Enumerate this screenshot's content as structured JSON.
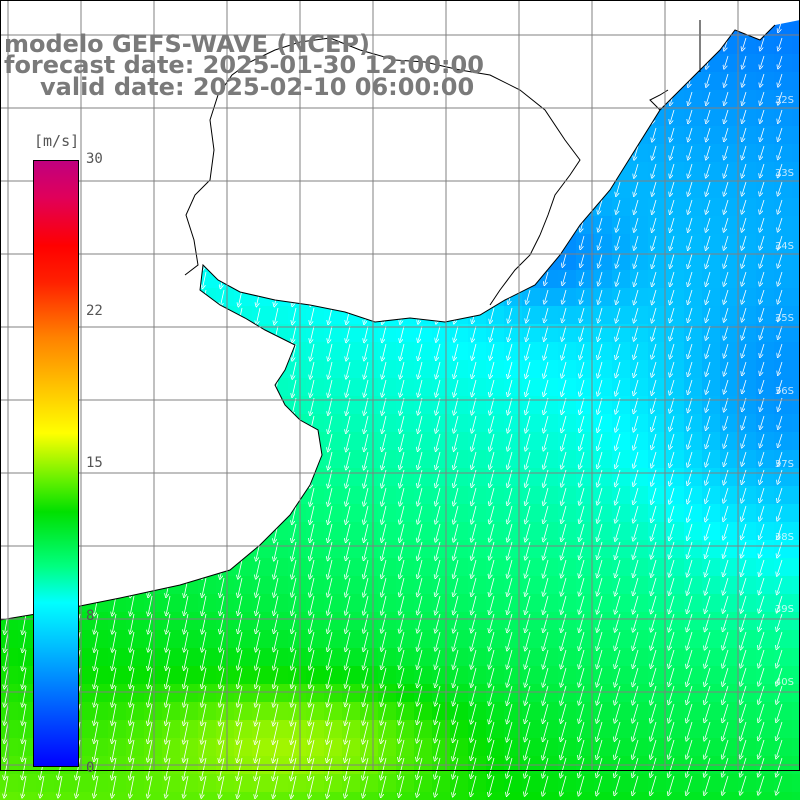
{
  "title": {
    "line1": "modelo GEFS-WAVE (NCEP)",
    "line2": "forecast date: 2025-01-30 12:00:00",
    "line3": "valid date: 2025-02-10 06:00:00"
  },
  "colorbar": {
    "units": "[m/s]",
    "ticks": [
      "30",
      "22",
      "15",
      "8",
      "0"
    ],
    "min": 0,
    "max": 30,
    "colors": [
      "#0000ff",
      "#00c0ff",
      "#00ffff",
      "#00e000",
      "#ffff00",
      "#ff8000",
      "#ff0000",
      "#c0007f"
    ]
  },
  "map": {
    "wind_direction": "from north-northeast (arrows pointing south-southwest)",
    "land_color": "#ffffff",
    "coast_color": "#000000",
    "grid_color": "#808080",
    "lat_labels": [
      "32S",
      "33S",
      "34S",
      "35S",
      "36S",
      "37S",
      "38S",
      "39S",
      "40S"
    ]
  }
}
